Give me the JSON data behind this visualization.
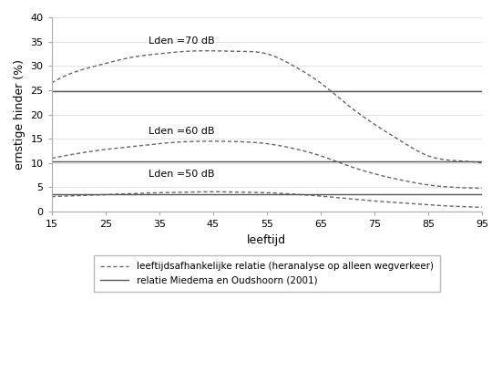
{
  "x_start": 15,
  "x_end": 95,
  "xlabel": "leeftijd",
  "ylabel": "ernstige hinder (%)",
  "xlim": [
    15,
    95
  ],
  "ylim": [
    0,
    40
  ],
  "xticks": [
    15,
    25,
    35,
    45,
    55,
    65,
    75,
    85,
    95
  ],
  "yticks": [
    0,
    5,
    10,
    15,
    20,
    25,
    30,
    35,
    40
  ],
  "miedema_70": 24.8,
  "miedema_60": 10.4,
  "miedema_50": 3.5,
  "curve_color": "#666666",
  "solid_color": "#555555",
  "bg_color": "#ffffff",
  "legend_label_dashed": "leeftijdsafhankelijke relatie (heranalyse op alleen wegverkeer)",
  "legend_label_solid": "relatie Miedema en Oudshoorn (2001)",
  "age_knots": [
    15,
    20,
    25,
    30,
    35,
    40,
    45,
    50,
    55,
    60,
    65,
    70,
    75,
    80,
    85,
    90,
    95
  ],
  "y70_knots": [
    26.5,
    29.0,
    30.5,
    31.8,
    32.5,
    33.0,
    33.1,
    33.0,
    32.5,
    30.0,
    26.5,
    22.0,
    18.0,
    14.5,
    11.5,
    10.5,
    10.0
  ],
  "y60_knots": [
    11.0,
    12.0,
    12.8,
    13.4,
    14.0,
    14.4,
    14.5,
    14.4,
    14.0,
    13.0,
    11.5,
    9.5,
    7.8,
    6.5,
    5.5,
    5.0,
    4.8
  ],
  "y50_knots": [
    3.1,
    3.3,
    3.5,
    3.7,
    3.9,
    4.0,
    4.1,
    4.0,
    3.9,
    3.6,
    3.2,
    2.7,
    2.2,
    1.8,
    1.4,
    1.1,
    0.9
  ]
}
